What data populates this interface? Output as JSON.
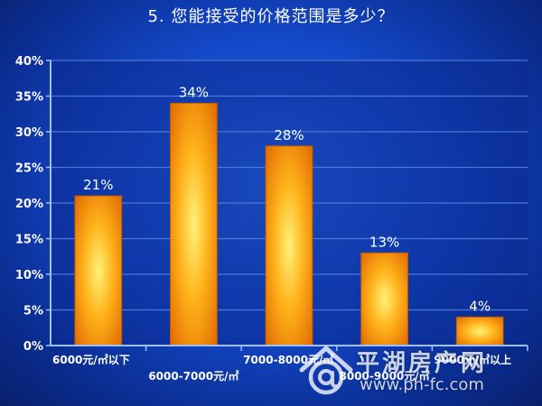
{
  "slide_title": "5. 您能接受的价格范围是多少？",
  "chart_data": {
    "type": "bar",
    "title": "5. 您能接受的价格范围是多少？",
    "xlabel": "",
    "ylabel": "",
    "categories": [
      "6000元/㎡以下",
      "6000-7000元/㎡",
      "7000-8000元/㎡",
      "8000-9000元/㎡",
      "9000元/㎡以上"
    ],
    "values": [
      21,
      34,
      28,
      13,
      4
    ],
    "data_labels": [
      "21%",
      "34%",
      "28%",
      "13%",
      "4%"
    ],
    "ylim": [
      0,
      40
    ],
    "yticks": [
      "0%",
      "5%",
      "10%",
      "15%",
      "20%",
      "25%",
      "30%",
      "35%",
      "40%"
    ],
    "grid": true,
    "legend": "none"
  },
  "colors": {
    "background": "#1448c8",
    "plot_background": "#0b2a8f",
    "gridline": "#4a78d6",
    "axis": "#9fc0ff",
    "bar_center": "#fff27a",
    "bar_mid": "#ffb21a",
    "bar_edge": "#e06a00",
    "text": "#ffffff"
  },
  "watermark": {
    "name": "平湖房产网",
    "url": "www.ph-fc.com",
    "icon": "at-sign-house-icon"
  }
}
